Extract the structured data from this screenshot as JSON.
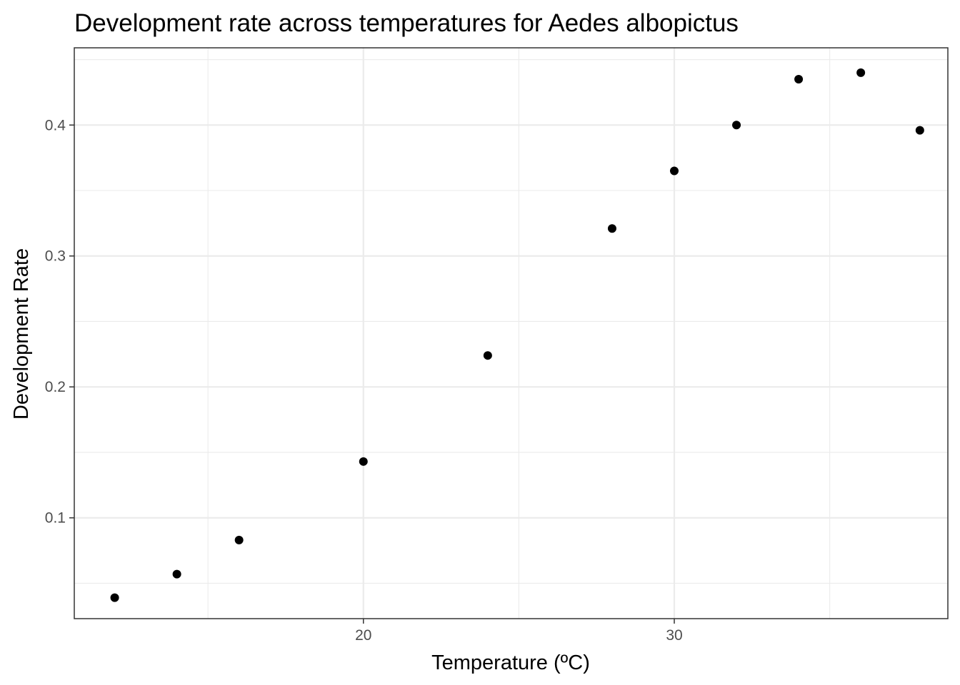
{
  "chart_data": {
    "type": "scatter",
    "title": "Development rate across temperatures for Aedes albopictus",
    "xlabel": "Temperature (ºC)",
    "ylabel": "Development Rate",
    "xlim": [
      10.7,
      38.8
    ],
    "ylim": [
      0.023,
      0.459
    ],
    "x_ticks": [
      20,
      30
    ],
    "x_tick_labels": [
      "20",
      "30"
    ],
    "x_minor_ticks": [
      15,
      25,
      35
    ],
    "y_ticks": [
      0.1,
      0.2,
      0.3,
      0.4
    ],
    "y_tick_labels": [
      "0.1",
      "0.2",
      "0.3",
      "0.4"
    ],
    "y_minor_ticks": [
      0.05,
      0.15,
      0.25,
      0.35,
      0.45
    ],
    "grid": true,
    "point_color": "#000000",
    "points": [
      {
        "x": 12.0,
        "y": 0.039
      },
      {
        "x": 14.0,
        "y": 0.057
      },
      {
        "x": 16.0,
        "y": 0.083
      },
      {
        "x": 20.0,
        "y": 0.143
      },
      {
        "x": 24.0,
        "y": 0.224
      },
      {
        "x": 28.0,
        "y": 0.321
      },
      {
        "x": 30.0,
        "y": 0.365
      },
      {
        "x": 32.0,
        "y": 0.4
      },
      {
        "x": 34.0,
        "y": 0.435
      },
      {
        "x": 36.0,
        "y": 0.44
      },
      {
        "x": 37.9,
        "y": 0.396
      }
    ]
  }
}
